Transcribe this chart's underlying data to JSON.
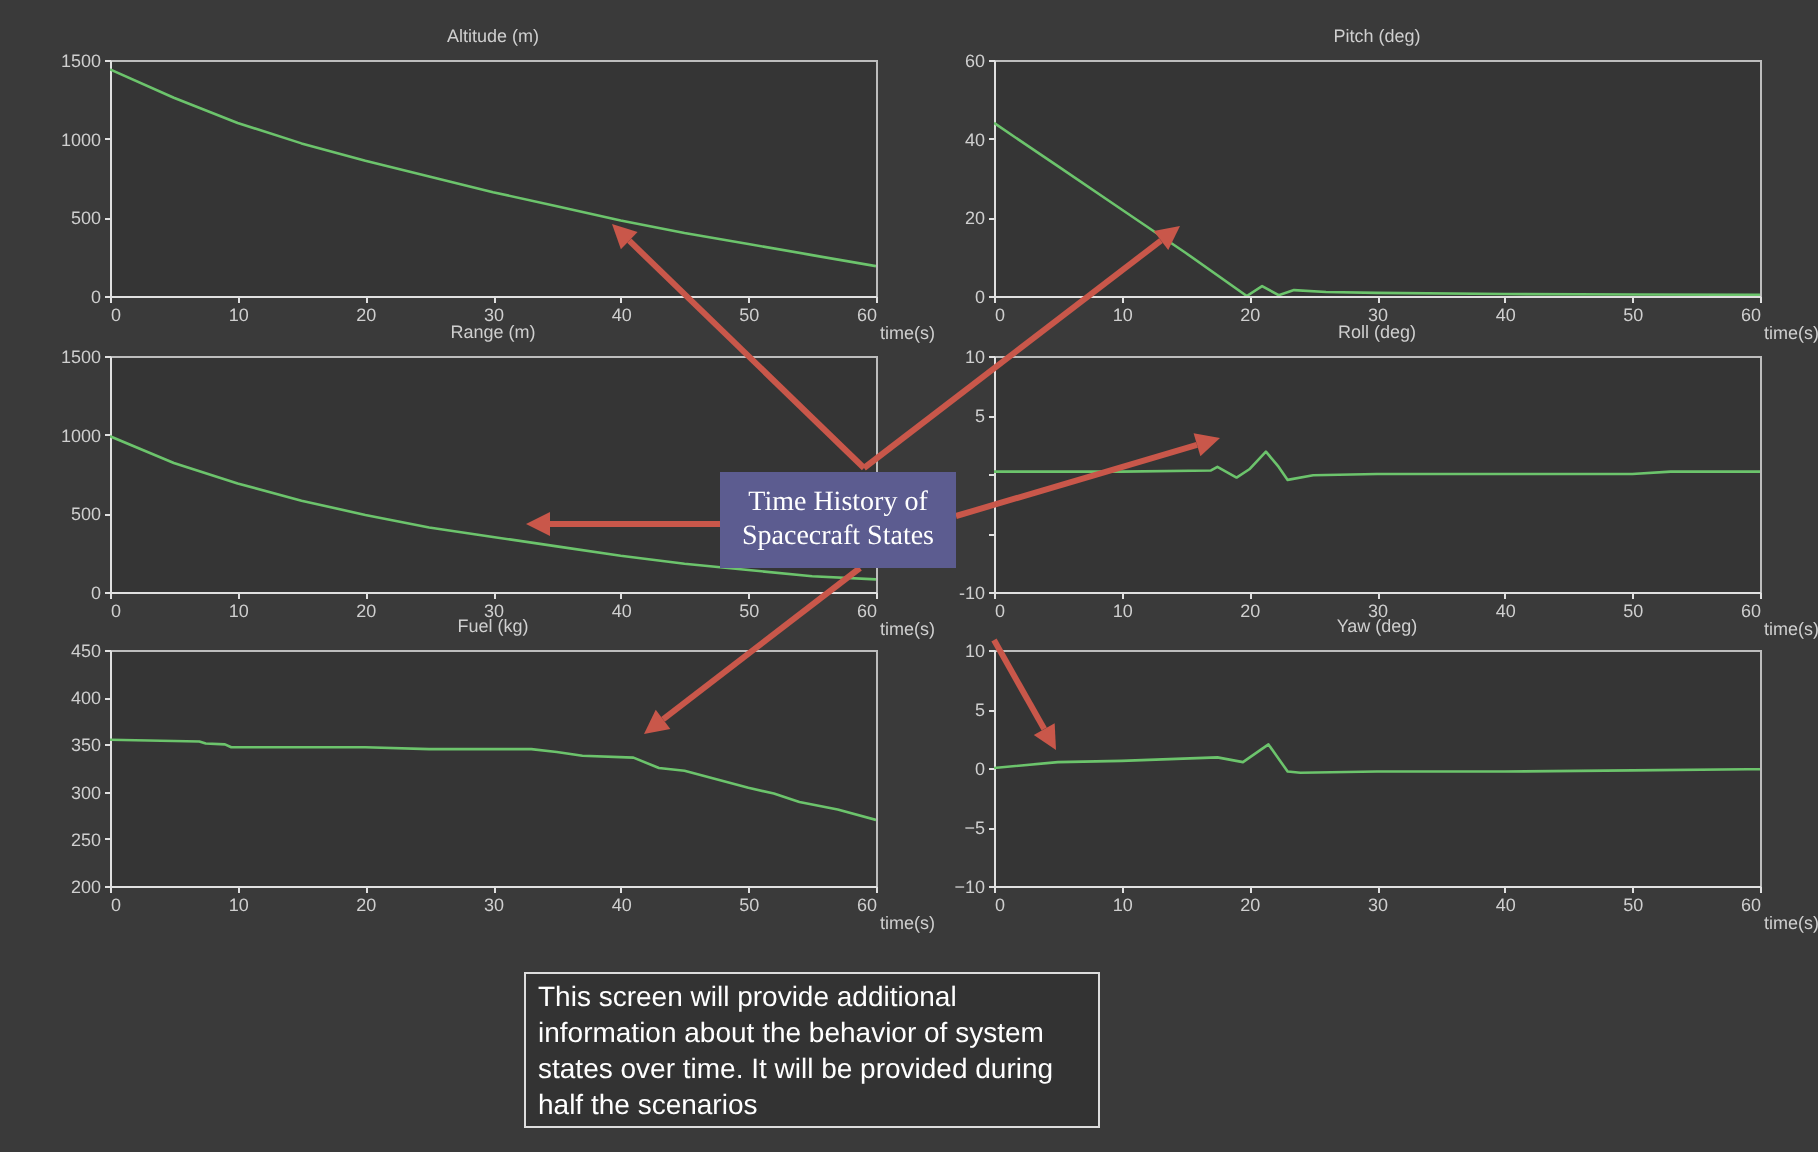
{
  "chart_data": [
    {
      "type": "line",
      "title": "Altitude (m)",
      "xlabel": "time(s)",
      "xlim": [
        0,
        60
      ],
      "xticks": [
        0,
        10,
        20,
        30,
        40,
        50,
        60
      ],
      "ylim": [
        0,
        1500
      ],
      "yticks": [
        0,
        500,
        1000,
        1500
      ],
      "x": [
        0,
        5,
        10,
        15,
        20,
        25,
        30,
        35,
        40,
        45,
        50,
        55,
        60
      ],
      "series": [
        {
          "color": "#6cc46c",
          "values": [
            1440,
            1260,
            1100,
            970,
            860,
            760,
            660,
            570,
            480,
            400,
            330,
            260,
            190
          ]
        }
      ]
    },
    {
      "type": "line",
      "title": "Pitch (deg)",
      "xlabel": "time(s)",
      "xlim": [
        0,
        60
      ],
      "xticks": [
        0,
        10,
        20,
        30,
        40,
        50,
        60
      ],
      "ylim": [
        0,
        60
      ],
      "yticks": [
        0,
        20,
        40,
        60
      ],
      "x": [
        0,
        5,
        10,
        15,
        19.8,
        21,
        22.3,
        23.5,
        26,
        30,
        40,
        50,
        60
      ],
      "series": [
        {
          "color": "#6cc46c",
          "values": [
            44,
            33,
            22,
            11,
            0,
            2.5,
            0.2,
            1.5,
            1,
            0.8,
            0.5,
            0.4,
            0.3
          ]
        }
      ]
    },
    {
      "type": "line",
      "title": "Range (m)",
      "xlabel": "time(s)",
      "xlim": [
        0,
        60
      ],
      "xticks": [
        0,
        10,
        20,
        30,
        40,
        50,
        60
      ],
      "ylim": [
        0,
        1500
      ],
      "yticks": [
        0,
        500,
        1000,
        1500
      ],
      "x": [
        0,
        5,
        10,
        15,
        20,
        25,
        30,
        35,
        40,
        45,
        50,
        55,
        60
      ],
      "series": [
        {
          "color": "#6cc46c",
          "values": [
            990,
            820,
            690,
            580,
            490,
            410,
            350,
            290,
            230,
            180,
            140,
            100,
            80
          ]
        }
      ]
    },
    {
      "type": "line",
      "title": "Roll (deg)",
      "xlabel": "time(s)",
      "xlim": [
        0,
        60
      ],
      "xticks": [
        0,
        10,
        20,
        30,
        40,
        50,
        60
      ],
      "ylim": [
        -10,
        10
      ],
      "yticks": [
        -10,
        {
          "value": -5,
          "label": null
        },
        {
          "value": 0,
          "label": null
        },
        5,
        10
      ],
      "x": [
        0,
        10,
        17,
        17.5,
        19,
        20,
        21.3,
        22.3,
        23,
        25,
        30,
        40,
        50,
        53,
        60
      ],
      "series": [
        {
          "color": "#6cc46c",
          "values": [
            0.2,
            0.2,
            0.3,
            0.6,
            -0.3,
            0.4,
            1.9,
            0.6,
            -0.5,
            -0.1,
            0,
            0,
            0,
            0.2,
            0.2
          ]
        }
      ]
    },
    {
      "type": "line",
      "title": "Fuel (kg)",
      "xlabel": "time(s)",
      "xlim": [
        0,
        60
      ],
      "xticks": [
        0,
        10,
        20,
        30,
        40,
        50,
        60
      ],
      "ylim": [
        200,
        450
      ],
      "yticks": [
        200,
        250,
        300,
        350,
        400,
        450
      ],
      "x": [
        0,
        7,
        7.5,
        9,
        9.5,
        20,
        25,
        33,
        35,
        37,
        41,
        43,
        45,
        50,
        52,
        54,
        57,
        60
      ],
      "series": [
        {
          "color": "#6cc46c",
          "values": [
            355,
            353,
            351,
            350,
            347,
            347,
            345,
            345,
            342,
            338,
            336,
            325,
            322,
            304,
            298,
            289,
            281,
            270
          ]
        }
      ]
    },
    {
      "type": "line",
      "title": "Yaw (deg)",
      "xlabel": "time(s)",
      "xlim": [
        0,
        60
      ],
      "xticks": [
        0,
        10,
        20,
        30,
        40,
        50,
        60
      ],
      "ylim": [
        -10,
        10
      ],
      "yticks": [
        -10,
        -5,
        0,
        5,
        10
      ],
      "x": [
        0,
        5,
        10,
        17.5,
        19.5,
        21.5,
        23,
        24,
        30,
        40,
        50,
        59,
        60
      ],
      "series": [
        {
          "color": "#6cc46c",
          "values": [
            0,
            0.5,
            0.6,
            0.9,
            0.5,
            2,
            -0.3,
            -0.4,
            -0.3,
            -0.3,
            -0.2,
            -0.1,
            -0.1
          ]
        }
      ]
    },
    {
      "type": "other",
      "annotations": [
        "Time History of Spacecraft States",
        "This screen will provide additional information about the behavior of system states over time. It will be provided during half the scenarios"
      ]
    }
  ]
}
